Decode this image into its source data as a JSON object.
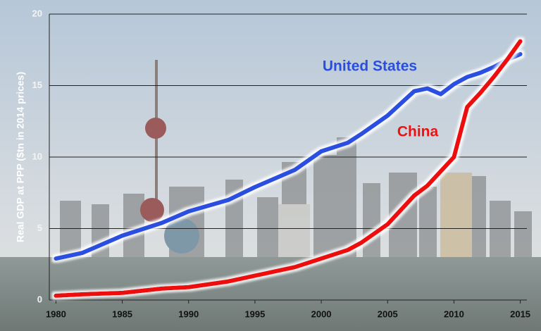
{
  "chart_data": {
    "type": "line",
    "y_label": "Real GDP at PPP ($tn in 2014 prices)",
    "x": [
      1980,
      1982,
      1985,
      1988,
      1990,
      1993,
      1995,
      1998,
      2000,
      2002,
      2003,
      2005,
      2007,
      2008,
      2009,
      2010,
      2011,
      2012,
      2013,
      2014,
      2015
    ],
    "series": [
      {
        "name": "United States",
        "color": "#2a4fe0",
        "values": [
          2.9,
          3.3,
          4.5,
          5.4,
          6.2,
          7.0,
          7.9,
          9.1,
          10.4,
          11.0,
          11.6,
          12.9,
          14.6,
          14.8,
          14.4,
          15.1,
          15.6,
          15.9,
          16.3,
          16.8,
          17.2
        ]
      },
      {
        "name": "China",
        "color": "#ee1111",
        "values": [
          0.3,
          0.4,
          0.5,
          0.8,
          0.9,
          1.3,
          1.7,
          2.3,
          2.9,
          3.5,
          4.0,
          5.3,
          7.3,
          8.0,
          9.0,
          10.0,
          13.5,
          14.5,
          15.6,
          16.8,
          18.1
        ]
      }
    ],
    "xlim": [
      1979.5,
      2015.5
    ],
    "xticks": [
      1980,
      1985,
      1990,
      1995,
      2000,
      2005,
      2010,
      2015
    ],
    "ylim": [
      0,
      20
    ],
    "yticks": [
      0,
      5,
      10,
      15,
      20
    ],
    "grid": true
  }
}
